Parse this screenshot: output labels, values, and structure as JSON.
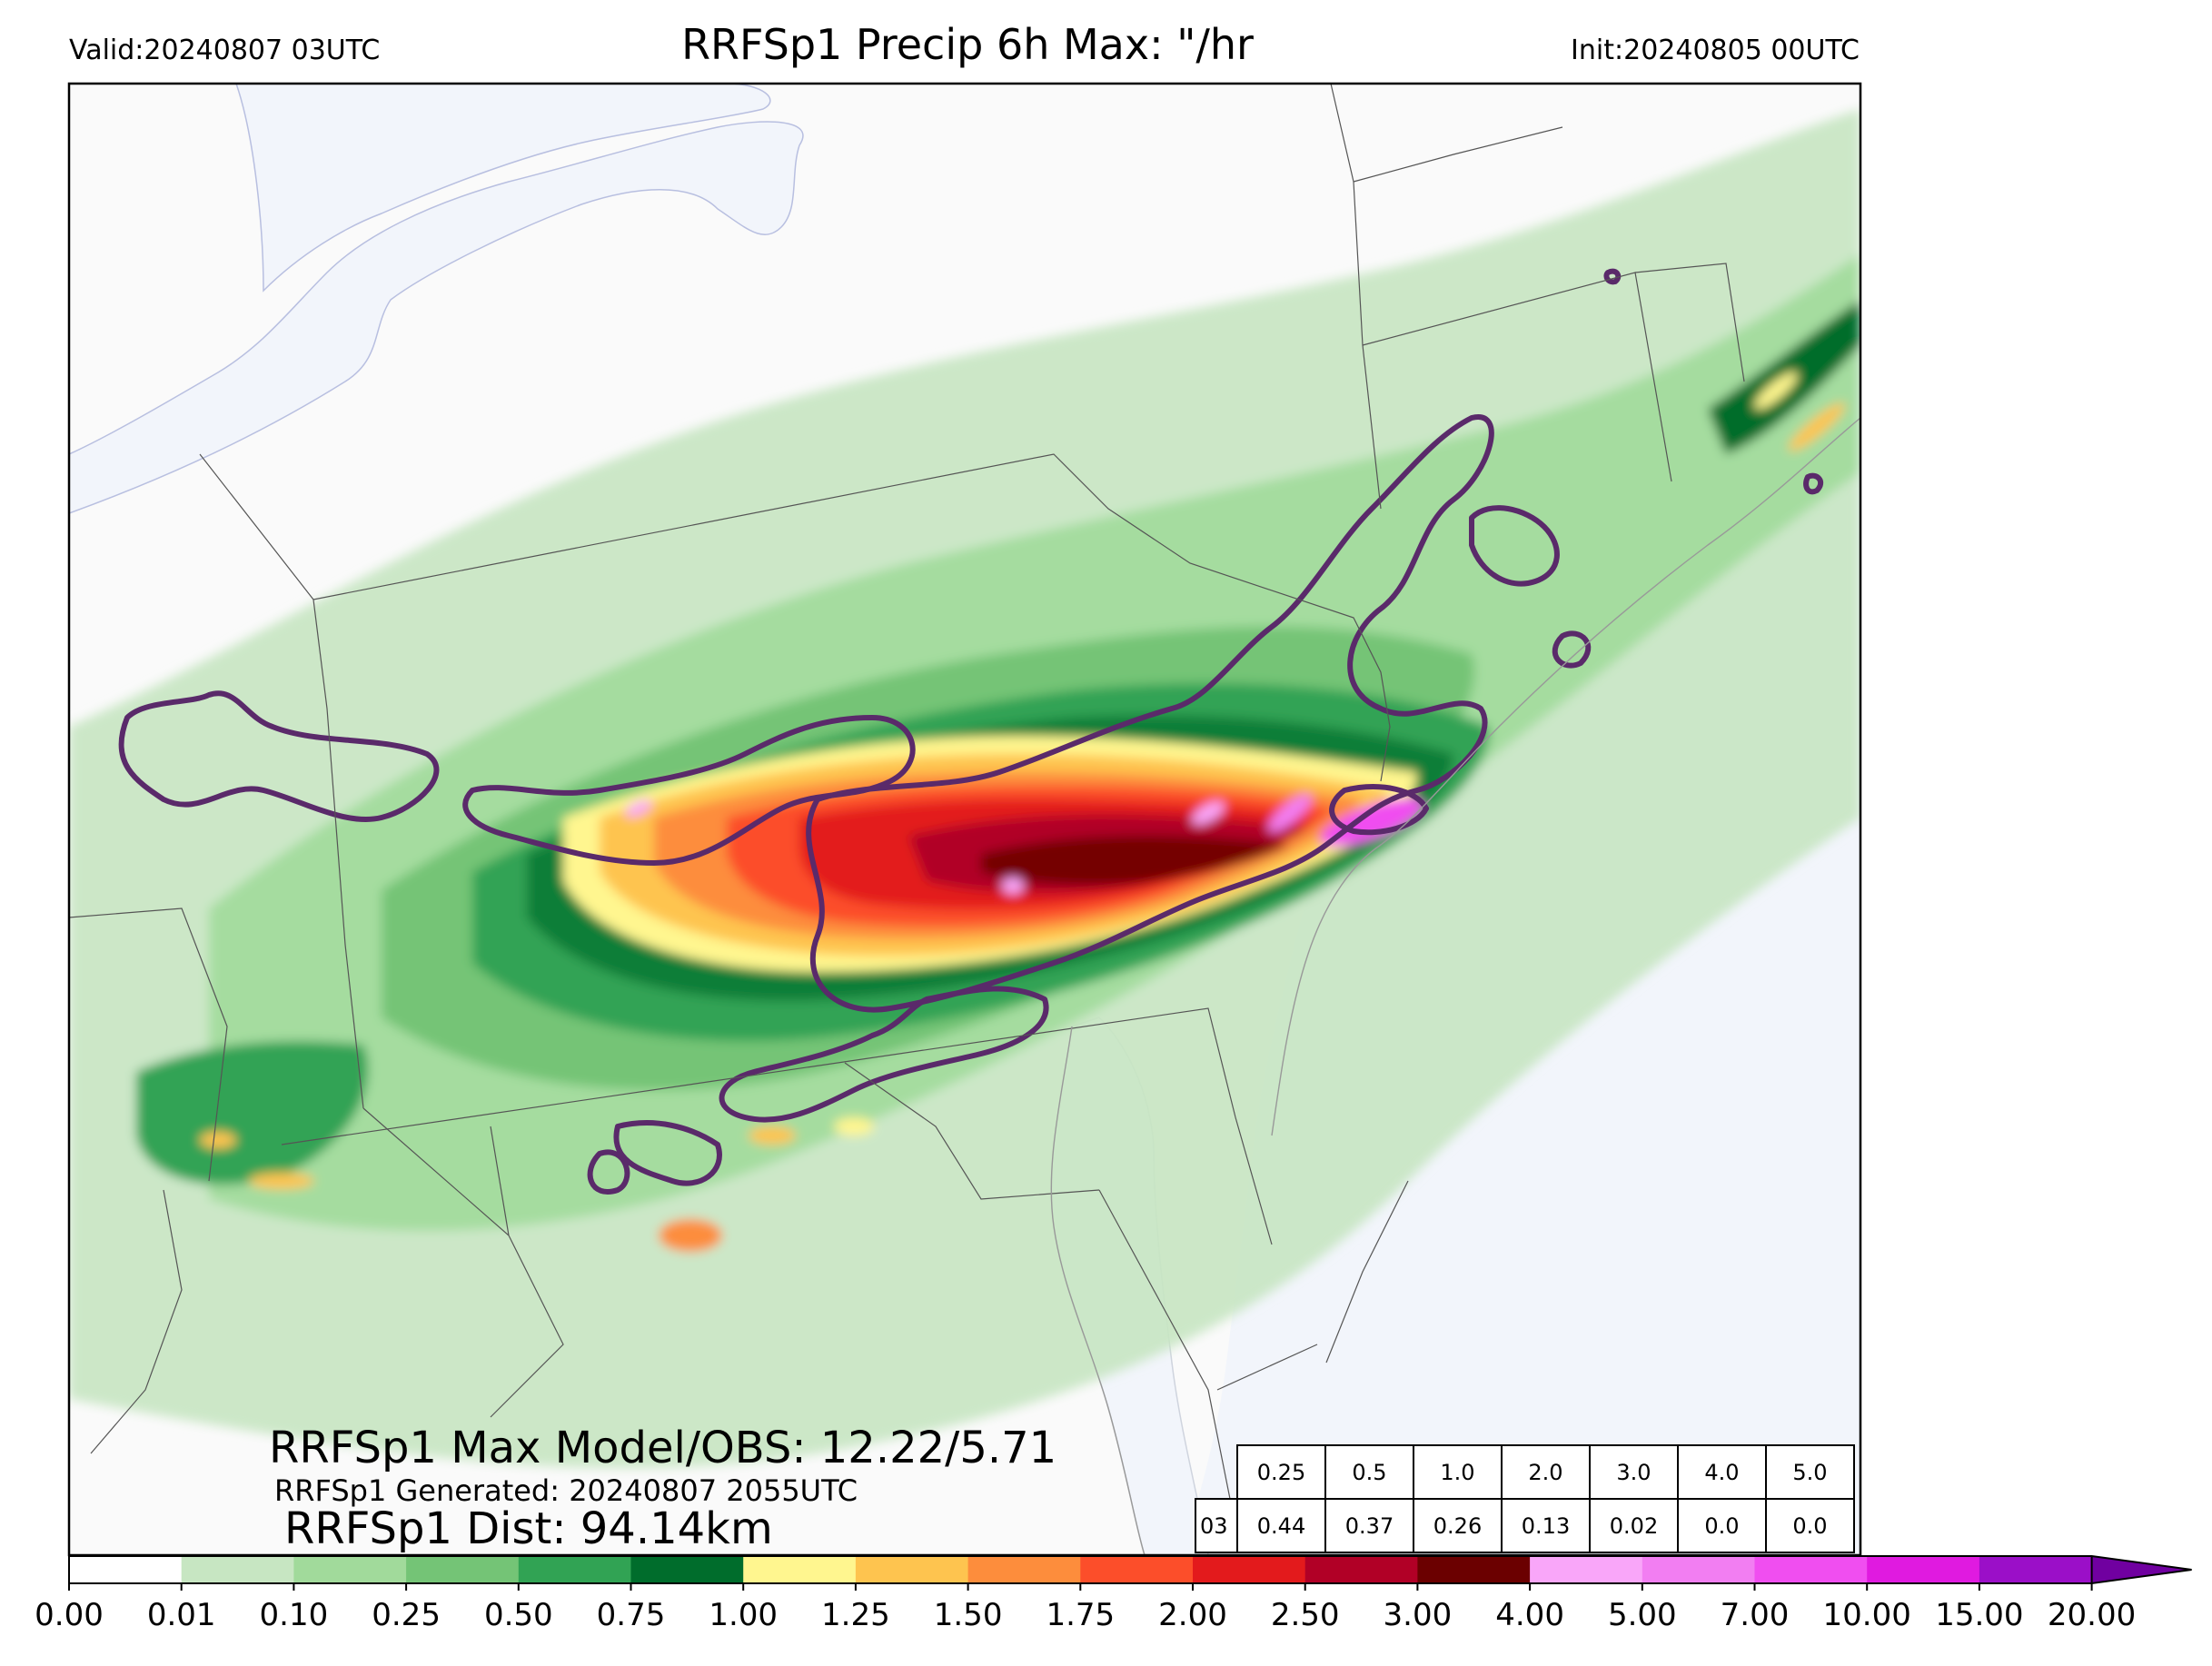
{
  "header": {
    "valid": "Valid:20240807 03UTC",
    "title": "RRFSp1 Precip 6h Max: \"/hr",
    "init": "Init:20240805 00UTC"
  },
  "annotations": {
    "max_model_obs": "RRFSp1 Max Model/OBS: 12.22/5.71",
    "generated": "RRFSp1 Generated: 20240807 2055UTC",
    "dist": "RRFSp1 Dist: 94.14km"
  },
  "stats_table": {
    "thresholds": [
      "0.25",
      "0.5",
      "1.0",
      "2.0",
      "3.0",
      "4.0",
      "5.0"
    ],
    "row_label": "03",
    "values": [
      "0.44",
      "0.37",
      "0.26",
      "0.13",
      "0.02",
      "0.0",
      "0.0"
    ]
  },
  "colorbar": {
    "ticks": [
      "0.00",
      "0.01",
      "0.10",
      "0.25",
      "0.50",
      "0.75",
      "1.00",
      "1.25",
      "1.50",
      "1.75",
      "2.00",
      "2.50",
      "3.00",
      "4.00",
      "5.00",
      "7.00",
      "10.00",
      "15.00",
      "20.00"
    ],
    "colors": [
      "#ffffff",
      "#c7e6c2",
      "#a1da9b",
      "#74c476",
      "#31a354",
      "#006d2c",
      "#fff68f",
      "#fec44f",
      "#fd8d3c",
      "#fc4e2a",
      "#e31a1c",
      "#b10026",
      "#6b0000",
      "#f9a6f9",
      "#f27ef2",
      "#f04ef0",
      "#e01ae0",
      "#9b0fc8"
    ],
    "extend_color": "#7000a0"
  },
  "map_colors": {
    "ocean": "#f2f5fb",
    "land": "#fafafa",
    "contour": "#5a2a6a"
  }
}
